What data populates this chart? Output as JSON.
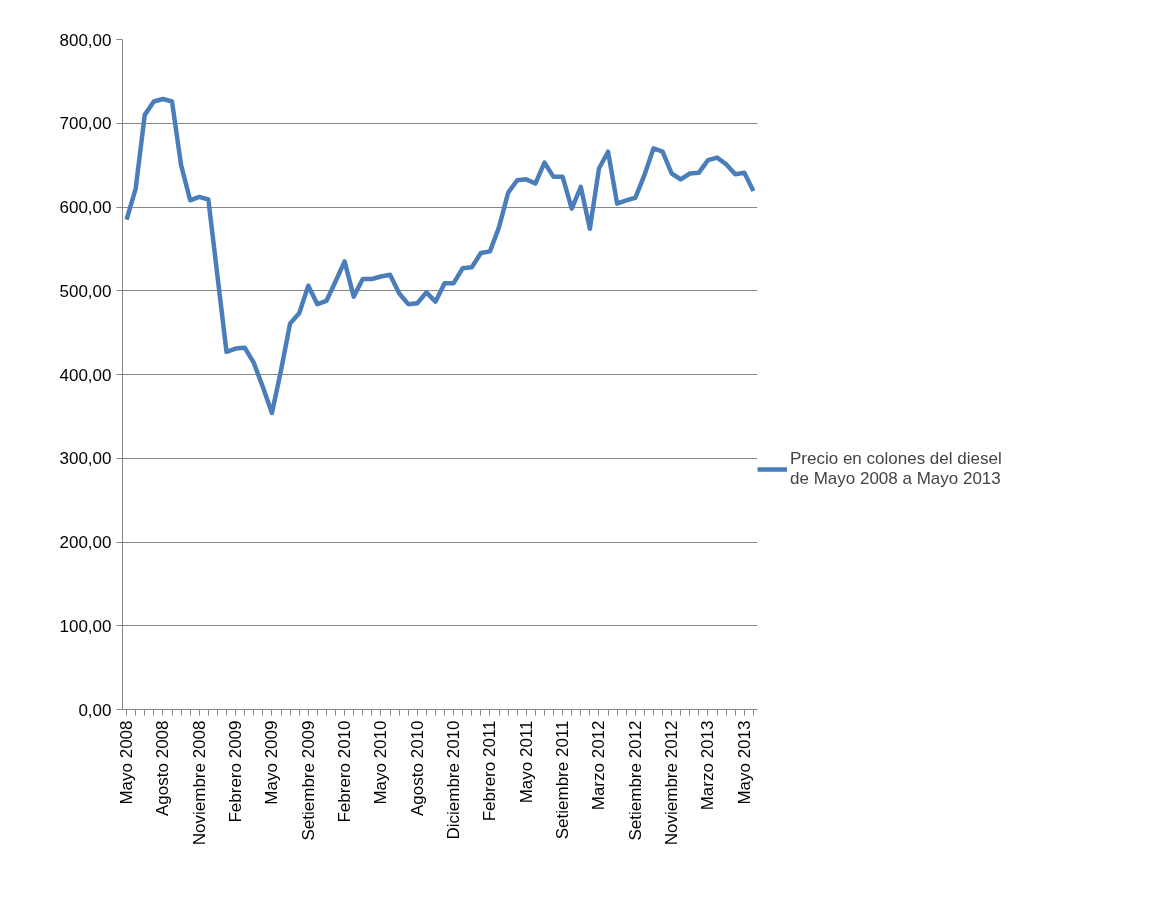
{
  "chart_data": {
    "type": "line",
    "categories": [
      "Mayo 2008",
      null,
      null,
      null,
      "Agosto 2008",
      null,
      null,
      null,
      "Noviembre 2008",
      null,
      null,
      null,
      "Febrero 2009",
      null,
      null,
      null,
      "Mayo 2009",
      null,
      null,
      null,
      "Setiembre 2009",
      null,
      null,
      null,
      "Febrero 2010",
      null,
      null,
      null,
      "Mayo 2010",
      null,
      null,
      null,
      "Agosto 2010",
      null,
      null,
      null,
      "Diciembre 2010",
      null,
      null,
      null,
      "Febrero 2011",
      null,
      null,
      null,
      "Mayo 2011",
      null,
      null,
      null,
      "Setiembre 2011",
      null,
      null,
      null,
      "Marzo 2012",
      null,
      null,
      null,
      "Setiembre 2012",
      null,
      null,
      null,
      "Noviembre 2012",
      null,
      null,
      null,
      "Marzo 2013",
      null,
      null,
      null,
      "Mayo 2013",
      null
    ],
    "series": [
      {
        "name": "Precio en colones del diesel de Mayo 2008 a Mayo 2013",
        "color": "#4a7ebb",
        "values": [
          585,
          622,
          710,
          726,
          729,
          726,
          650,
          608,
          612,
          609,
          518,
          427,
          431,
          432,
          414,
          385,
          354,
          405,
          461,
          473,
          506,
          484,
          488,
          511,
          535,
          493,
          514,
          514,
          517,
          519,
          497,
          484,
          485,
          498,
          487,
          509,
          509,
          527,
          528,
          545,
          547,
          576,
          617,
          632,
          633,
          628,
          653,
          636,
          636,
          598,
          624,
          574,
          646,
          666,
          604,
          608,
          611,
          638,
          670,
          666,
          640,
          633,
          640,
          641,
          656,
          659,
          651,
          639,
          641,
          619
        ]
      }
    ],
    "ylim": [
      0,
      800
    ],
    "yticks": [
      {
        "value": 0,
        "label": "0,00"
      },
      {
        "value": 100,
        "label": "100,00"
      },
      {
        "value": 200,
        "label": "200,00"
      },
      {
        "value": 300,
        "label": "300,00"
      },
      {
        "value": 400,
        "label": "400,00"
      },
      {
        "value": 500,
        "label": "500,00"
      },
      {
        "value": 600,
        "label": "600,00"
      },
      {
        "value": 700,
        "label": "700,00"
      },
      {
        "value": 800,
        "label": "800,00"
      }
    ],
    "grid": "y",
    "legend": "right",
    "marker": "none",
    "line_style": "solid"
  }
}
